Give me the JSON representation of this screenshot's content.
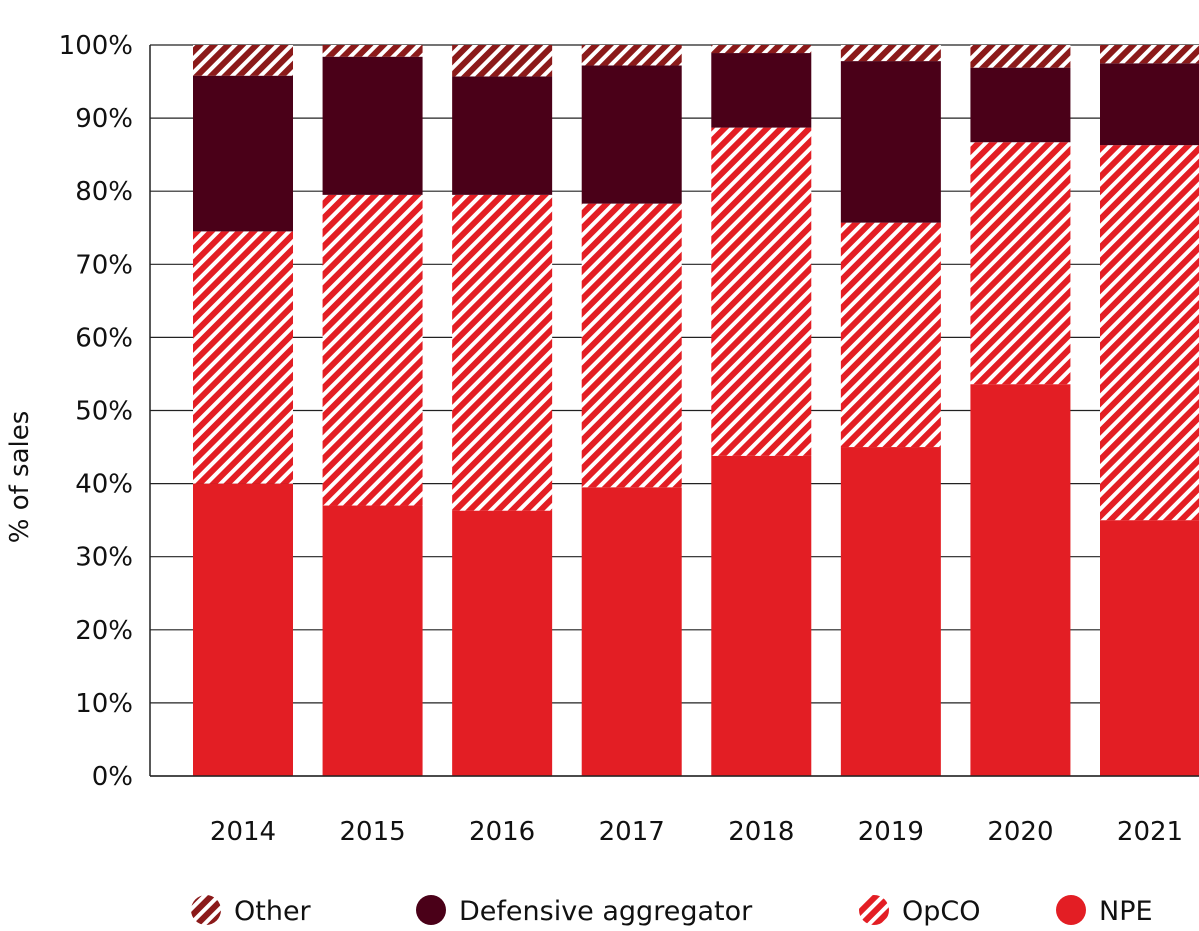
{
  "chart_data": {
    "type": "bar",
    "stacked": true,
    "categories": [
      "2014",
      "2015",
      "2016",
      "2017",
      "2018",
      "2019",
      "2020",
      "2021"
    ],
    "series": [
      {
        "name": "NPE",
        "values": [
          40,
          37,
          36.3,
          39.5,
          43.8,
          45,
          53.6,
          35
        ],
        "color": "#e31e24",
        "pattern": "solid"
      },
      {
        "name": "OpCO",
        "values": [
          34.5,
          42.5,
          43.2,
          38.8,
          44.9,
          30.7,
          33.1,
          51.3
        ],
        "color": "#e31e24",
        "pattern": "hatch-light"
      },
      {
        "name": "Defensive aggregator",
        "values": [
          21.3,
          18.9,
          16.2,
          18.9,
          10.2,
          22.1,
          10.2,
          11.2
        ],
        "color": "#4a0018",
        "pattern": "solid"
      },
      {
        "name": "Other",
        "values": [
          4.2,
          1.6,
          4.3,
          2.8,
          1.1,
          2.2,
          3.1,
          2.5
        ],
        "color": "#8b1a1a",
        "pattern": "hatch-dark"
      }
    ],
    "ylabel": "% of sales",
    "xlabel": "",
    "ylim": [
      0,
      100
    ],
    "yticks": [
      "0%",
      "10%",
      "20%",
      "30%",
      "40%",
      "50%",
      "60%",
      "70%",
      "80%",
      "90%",
      "100%"
    ],
    "grid": "horizontal",
    "legend_position": "bottom",
    "legend_order": [
      "Other",
      "Defensive aggregator",
      "OpCO",
      "NPE"
    ]
  }
}
